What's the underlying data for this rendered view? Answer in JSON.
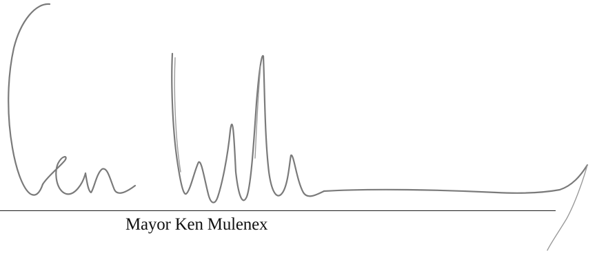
{
  "signature": {
    "signer_name": "Mayor Ken Mulenex",
    "ink_color": "#7a7a7a",
    "line_color": "#1a1a1a"
  }
}
